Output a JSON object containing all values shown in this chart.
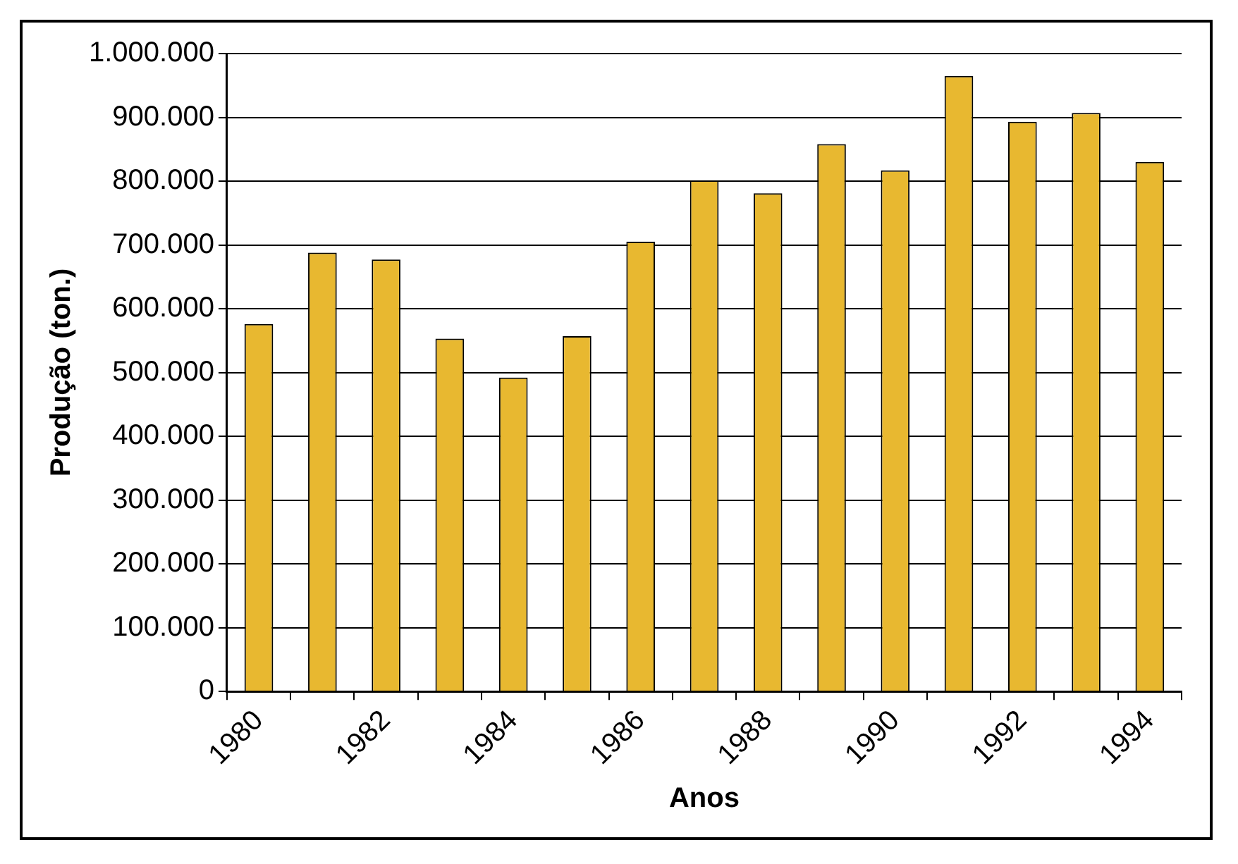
{
  "chart_data": {
    "type": "bar",
    "xlabel": "Anos",
    "ylabel": "Produção (ton.)",
    "categories": [
      "1980",
      null,
      "1982",
      null,
      "1984",
      null,
      "1986",
      null,
      "1988",
      null,
      "1990",
      null,
      "1992",
      null,
      "1994"
    ],
    "values": [
      576000,
      688000,
      677000,
      553000,
      492000,
      557000,
      705000,
      801000,
      781000,
      858000,
      817000,
      965000,
      893000,
      907000,
      830000
    ],
    "color": "#e8b830",
    "ylim": [
      0,
      1000000
    ],
    "yticks": [
      {
        "value": 0,
        "label": "0"
      },
      {
        "value": 100000,
        "label": "100.000"
      },
      {
        "value": 200000,
        "label": "200.000"
      },
      {
        "value": 300000,
        "label": "300.000"
      },
      {
        "value": 400000,
        "label": "400.000"
      },
      {
        "value": 500000,
        "label": "500.000"
      },
      {
        "value": 600000,
        "label": "600.000"
      },
      {
        "value": 700000,
        "label": "700.000"
      },
      {
        "value": 800000,
        "label": "800.000"
      },
      {
        "value": 900000,
        "label": "900.000"
      },
      {
        "value": 1000000,
        "label": "1.000.000"
      }
    ],
    "grid": "y",
    "legend": false
  }
}
